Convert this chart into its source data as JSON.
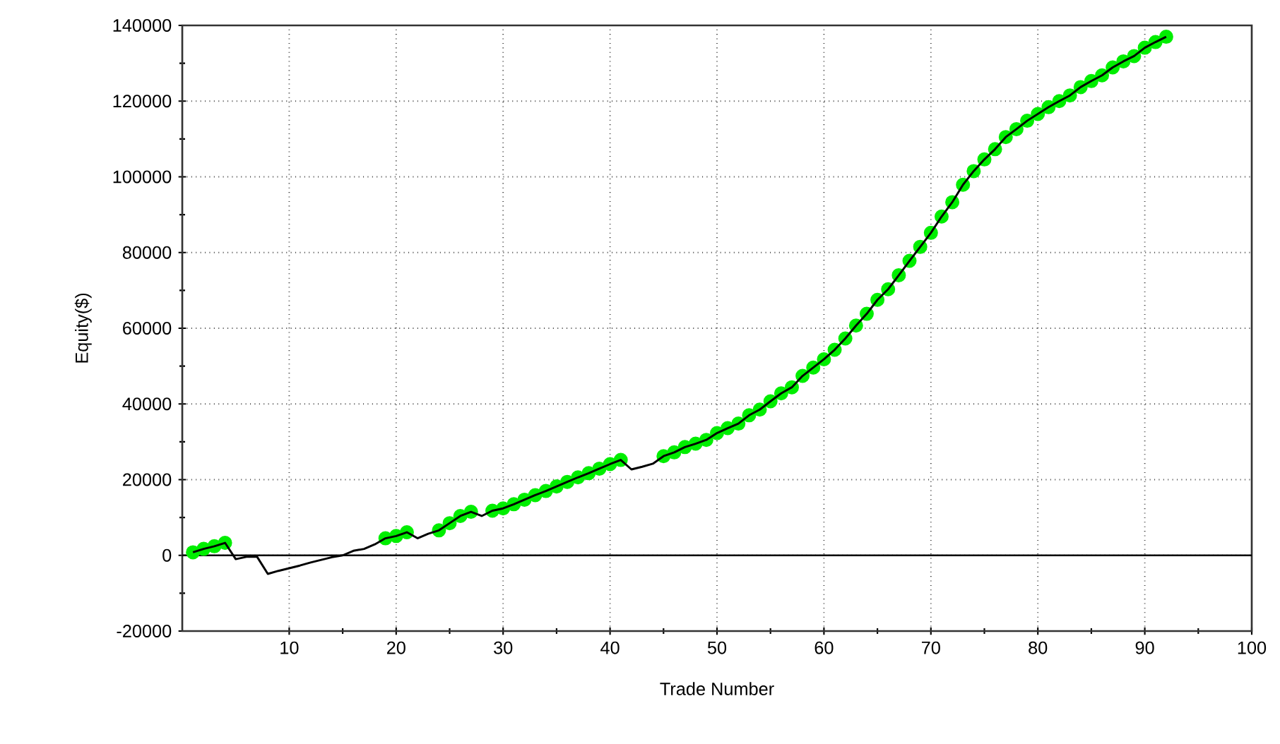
{
  "chart_data": {
    "type": "line",
    "xlabel": "Trade Number",
    "ylabel": "Equity($)",
    "xlim": [
      0,
      100
    ],
    "xticks": [
      10,
      20,
      30,
      40,
      50,
      60,
      70,
      80,
      90,
      100
    ],
    "ylim": [
      -20000,
      140000
    ],
    "yticks": [
      -20000,
      0,
      20000,
      40000,
      60000,
      80000,
      100000,
      120000,
      140000
    ],
    "grid": true,
    "ref_lines": [
      {
        "axis": "y",
        "value": 0,
        "color": "#000000"
      }
    ],
    "series": [
      {
        "color": "#000000",
        "marker": "none",
        "x": [
          1,
          2,
          3,
          4,
          5,
          6,
          7,
          8,
          9,
          10,
          11,
          12,
          13,
          14,
          15,
          16,
          17,
          18,
          19,
          20,
          21,
          22,
          23,
          24,
          25,
          26,
          27,
          28,
          29,
          30,
          31,
          32,
          33,
          34,
          35,
          36,
          37,
          38,
          39,
          40,
          41,
          42,
          43,
          44,
          45,
          46,
          47,
          48,
          49,
          50,
          51,
          52,
          53,
          54,
          55,
          56,
          57,
          58,
          59,
          60,
          61,
          62,
          63,
          64,
          65,
          66,
          67,
          68,
          69,
          70,
          71,
          72,
          73,
          74,
          75,
          76,
          77,
          78,
          79,
          80,
          81,
          82,
          83,
          84,
          85,
          86,
          87,
          88,
          89,
          90,
          91,
          92
        ],
        "values": [
          800,
          1700,
          2400,
          3300,
          -1000,
          -400,
          -400,
          -4900,
          -4100,
          -3400,
          -2700,
          -1900,
          -1200,
          -500,
          0,
          1200,
          1700,
          2900,
          4500,
          5100,
          6100,
          4500,
          5700,
          6600,
          8500,
          10400,
          11500,
          10400,
          11800,
          12400,
          13500,
          14700,
          15900,
          17000,
          18200,
          19400,
          20600,
          21700,
          22900,
          24100,
          25200,
          22700,
          23400,
          24200,
          26200,
          27200,
          28600,
          29500,
          30500,
          32300,
          33600,
          34800,
          37000,
          38500,
          40700,
          42800,
          44400,
          47400,
          49600,
          51800,
          54300,
          57300,
          60700,
          63800,
          67500,
          70300,
          74000,
          77800,
          81500,
          85200,
          89500,
          93300,
          97900,
          101500,
          104600,
          107300,
          110500,
          112600,
          114800,
          116600,
          118400,
          120000,
          121500,
          123700,
          125300,
          126800,
          128900,
          130500,
          131900,
          134100,
          135600,
          137000
        ]
      },
      {
        "type": "scatter",
        "color": "#00ee00",
        "marker": "circle",
        "x": [
          1,
          2,
          3,
          4,
          19,
          20,
          21,
          24,
          25,
          26,
          27,
          29,
          30,
          31,
          32,
          33,
          34,
          35,
          36,
          37,
          38,
          39,
          40,
          41,
          45,
          46,
          47,
          48,
          49,
          50,
          51,
          52,
          53,
          54,
          55,
          56,
          57,
          58,
          59,
          60,
          61,
          62,
          63,
          64,
          65,
          66,
          67,
          68,
          69,
          70,
          71,
          72,
          73,
          74,
          75,
          76,
          77,
          78,
          79,
          80,
          81,
          82,
          83,
          84,
          85,
          86,
          87,
          88,
          89,
          90,
          91,
          92
        ],
        "values": [
          800,
          1700,
          2400,
          3300,
          4500,
          5100,
          6100,
          6600,
          8500,
          10400,
          11500,
          11800,
          12400,
          13500,
          14700,
          15900,
          17000,
          18200,
          19400,
          20600,
          21700,
          22900,
          24100,
          25200,
          26200,
          27200,
          28600,
          29500,
          30500,
          32300,
          33600,
          34800,
          37000,
          38500,
          40700,
          42800,
          44400,
          47400,
          49600,
          51800,
          54300,
          57300,
          60700,
          63800,
          67500,
          70300,
          74000,
          77800,
          81500,
          85200,
          89500,
          93300,
          97900,
          101500,
          104600,
          107300,
          110500,
          112600,
          114800,
          116600,
          118400,
          120000,
          121500,
          123700,
          125300,
          126800,
          128900,
          130500,
          131900,
          134100,
          135600,
          137000
        ]
      }
    ]
  }
}
